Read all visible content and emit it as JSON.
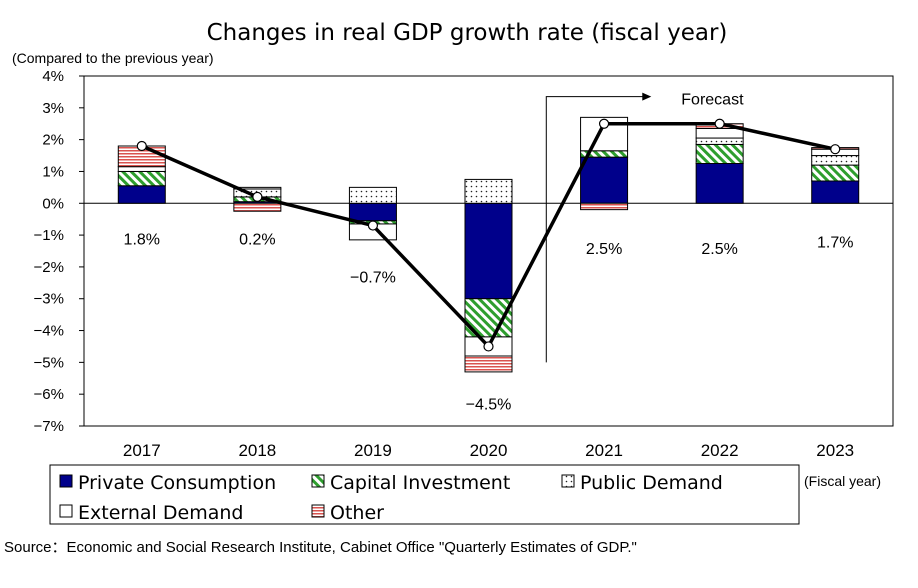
{
  "chart_data": {
    "type": "bar",
    "title": "Changes in real GDP growth rate (fiscal year)",
    "ylabel": "(Compared to the previous year)",
    "xlabel": "(Fiscal year)",
    "ylim": [
      -7,
      4
    ],
    "yticks": [
      {
        "value": 4,
        "label": "4%"
      },
      {
        "value": 3,
        "label": "3%"
      },
      {
        "value": 2,
        "label": "2%"
      },
      {
        "value": 1,
        "label": "1%"
      },
      {
        "value": 0,
        "label": "0%"
      },
      {
        "value": -1,
        "label": "−1%"
      },
      {
        "value": -2,
        "label": "−2%"
      },
      {
        "value": -3,
        "label": "−3%"
      },
      {
        "value": -4,
        "label": "−4%"
      },
      {
        "value": -5,
        "label": "−5%"
      },
      {
        "value": -6,
        "label": "−6%"
      },
      {
        "value": -7,
        "label": "−7%"
      }
    ],
    "categories": [
      "2017",
      "2018",
      "2019",
      "2020",
      "2021",
      "2022",
      "2023"
    ],
    "series": [
      {
        "name": "Private Consumption",
        "values": [
          0.55,
          0.05,
          -0.55,
          -3.0,
          1.45,
          1.25,
          0.7
        ]
      },
      {
        "name": "Capital Investment",
        "values": [
          0.45,
          0.15,
          -0.1,
          -1.2,
          0.2,
          0.6,
          0.5
        ]
      },
      {
        "name": "Public Demand",
        "values": [
          0.0,
          0.25,
          0.5,
          0.75,
          0.0,
          0.2,
          0.3
        ]
      },
      {
        "name": "External Demand",
        "values": [
          0.15,
          0.05,
          -0.5,
          -0.6,
          1.05,
          0.3,
          0.2
        ]
      },
      {
        "name": "Other",
        "values": [
          0.65,
          -0.25,
          0.0,
          -0.5,
          -0.2,
          0.15,
          0.05
        ]
      }
    ],
    "line": {
      "values": [
        1.8,
        0.2,
        -0.7,
        -4.5,
        2.5,
        2.5,
        1.7
      ]
    },
    "data_labels": [
      {
        "text": "1.8%",
        "y": -1.1
      },
      {
        "text": "0.2%",
        "y": -1.1
      },
      {
        "text": "−0.7%",
        "y": -2.3
      },
      {
        "text": "−4.5%",
        "y": -6.3
      },
      {
        "text": "2.5%",
        "y": -1.4
      },
      {
        "text": "2.5%",
        "y": -1.4
      },
      {
        "text": "1.7%",
        "y": -1.2
      }
    ],
    "annotation": {
      "text": "Forecast"
    },
    "legend_position": "bottom",
    "grid": false
  },
  "source": "Source：Economic and Social Research Institute, Cabinet Office \"Quarterly Estimates of GDP.\""
}
